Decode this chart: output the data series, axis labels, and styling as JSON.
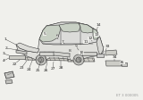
{
  "bg_color": "#f0f0ec",
  "line_color": "#3a3a3a",
  "label_color": "#222222",
  "fig_width": 1.6,
  "fig_height": 1.12,
  "dpi": 100,
  "watermark": "ET 3 000005",
  "car": {
    "body_fc": "#e2e2de",
    "glass_fc": "#c8d0c4",
    "wheel_fc": "#b8b8b4"
  }
}
